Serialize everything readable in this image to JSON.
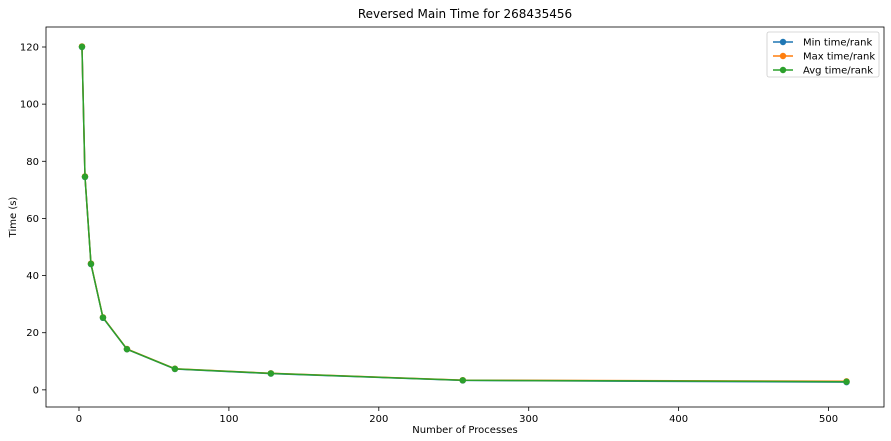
{
  "chart_data": {
    "type": "line",
    "title": "Reversed Main Time for 268435456",
    "xlabel": "Number of Processes",
    "ylabel": "Time (s)",
    "xlim": [
      -22,
      537
    ],
    "ylim": [
      -6,
      127
    ],
    "xticks": [
      0,
      100,
      200,
      300,
      400,
      500
    ],
    "yticks": [
      0,
      20,
      40,
      60,
      80,
      100,
      120
    ],
    "grid": false,
    "legend_position": "top-right",
    "x": [
      2,
      4,
      8,
      16,
      32,
      64,
      128,
      256,
      512
    ],
    "series": [
      {
        "name": "Min time/rank",
        "color": "#1f77b4",
        "marker": "circle",
        "values": [
          120.0,
          74.5,
          44.0,
          25.2,
          14.2,
          7.3,
          5.7,
          3.3,
          2.7
        ]
      },
      {
        "name": "Max time/rank",
        "color": "#ff7f0e",
        "marker": "circle",
        "values": [
          120.2,
          74.7,
          44.2,
          25.4,
          14.3,
          7.4,
          5.8,
          3.4,
          3.0
        ]
      },
      {
        "name": "Avg time/rank",
        "color": "#2ca02c",
        "marker": "circle",
        "values": [
          120.1,
          74.6,
          44.1,
          25.3,
          14.25,
          7.35,
          5.75,
          3.35,
          2.85
        ]
      }
    ]
  }
}
